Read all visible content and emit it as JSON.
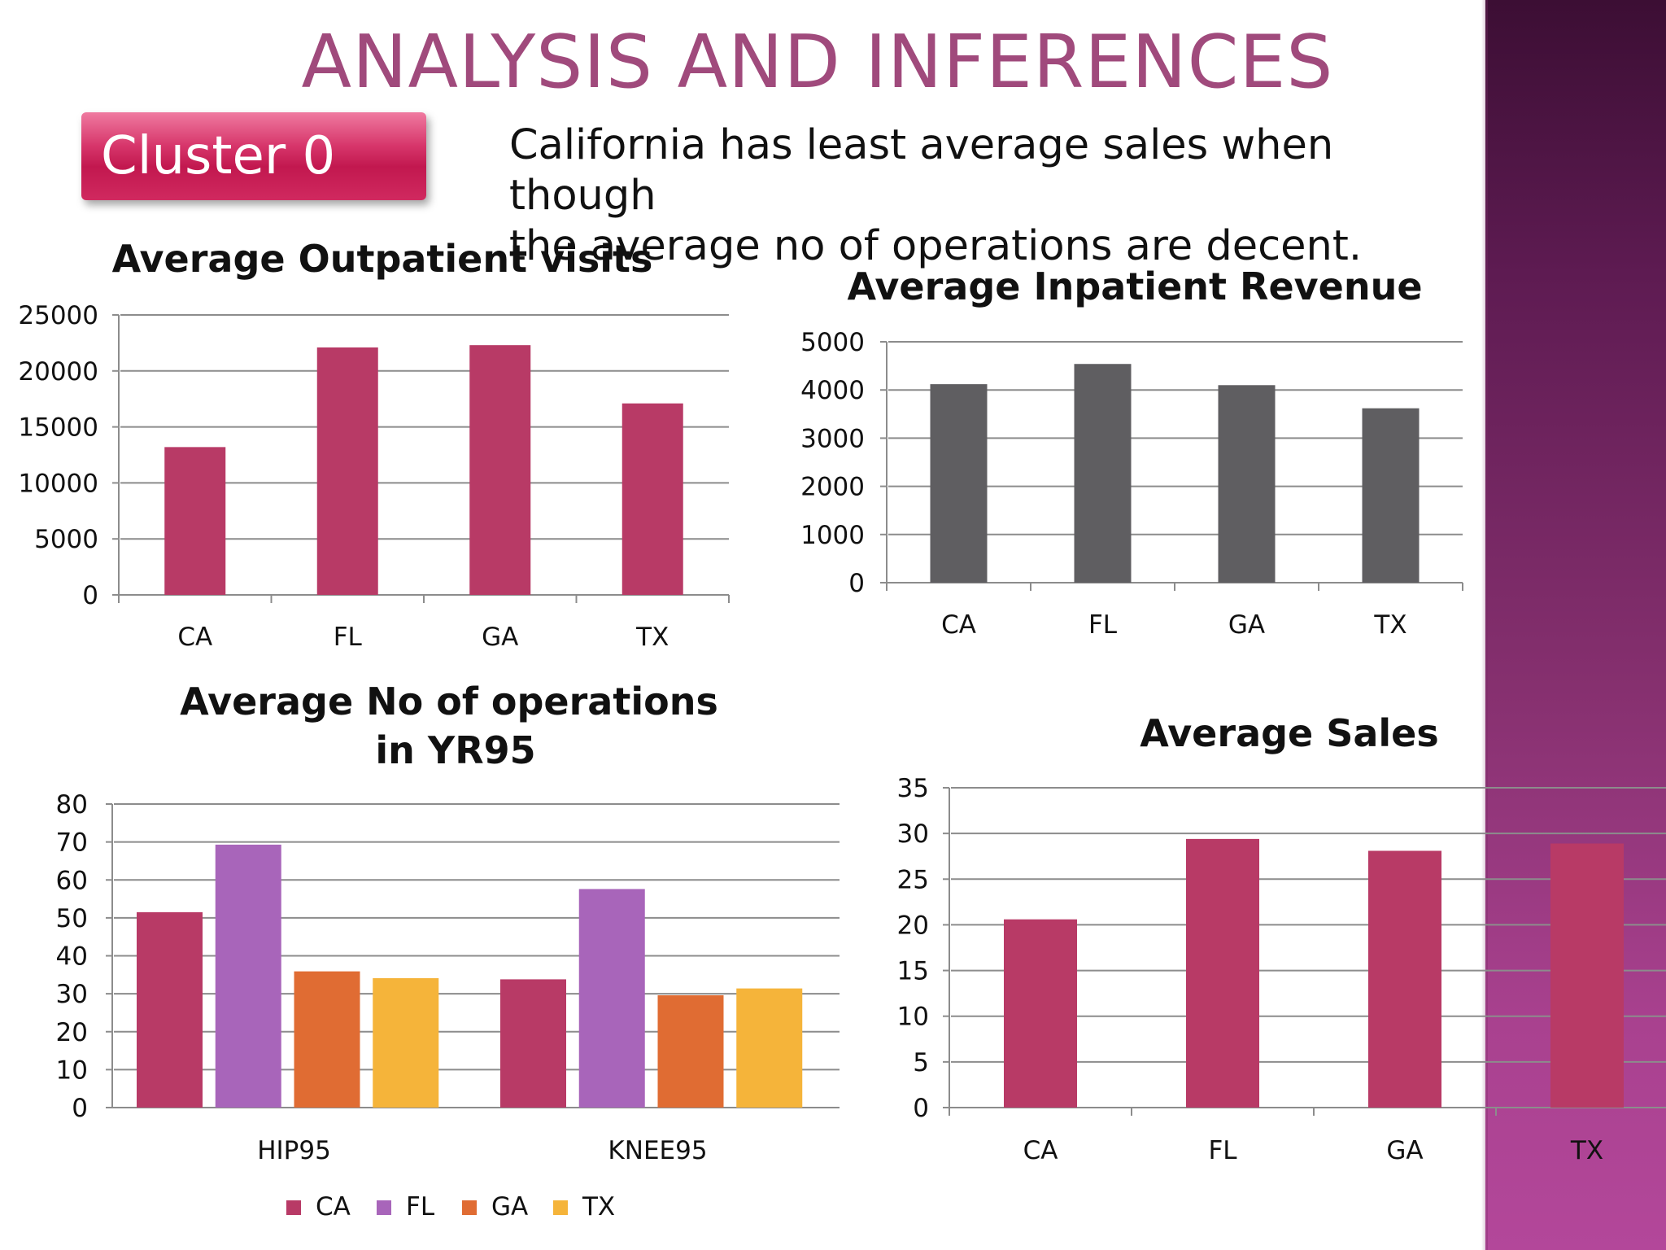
{
  "page": {
    "title": "ANALYSIS AND INFERENCES",
    "cluster_label": "Cluster 0",
    "caption_line1": "California has least average sales when though",
    "caption_line2": "the average no of operations are decent."
  },
  "colors": {
    "title": "#a04a7c",
    "bar_pink": "#b83a66",
    "bar_gray": "#5f5e61",
    "series": [
      "#b83a66",
      "#a865ba",
      "#e06c33",
      "#f5b43a"
    ],
    "side_band": "#86306f"
  },
  "chart_data": [
    {
      "type": "bar",
      "title": "Average Outpatient visits",
      "categories": [
        "CA",
        "FL",
        "GA",
        "TX"
      ],
      "values": [
        13200,
        22100,
        22300,
        17100
      ],
      "ylim": [
        0,
        25000
      ],
      "yticks": [
        0,
        5000,
        10000,
        15000,
        20000,
        25000
      ],
      "grid": true,
      "legend": "none"
    },
    {
      "type": "bar",
      "title": "Average Inpatient Revenue",
      "categories": [
        "CA",
        "FL",
        "GA",
        "TX"
      ],
      "values": [
        4120,
        4540,
        4100,
        3620
      ],
      "ylim": [
        0,
        5000
      ],
      "yticks": [
        0,
        1000,
        2000,
        3000,
        4000,
        5000
      ],
      "grid": true,
      "legend": "none"
    },
    {
      "type": "bar",
      "title_line1": "Average No of operations",
      "title_line2": "in YR95",
      "categories": [
        "HIP95",
        "KNEE95"
      ],
      "series": [
        {
          "name": "CA",
          "values": [
            51.5,
            33.8
          ]
        },
        {
          "name": "FL",
          "values": [
            69.3,
            57.6
          ]
        },
        {
          "name": "GA",
          "values": [
            35.9,
            29.6
          ]
        },
        {
          "name": "TX",
          "values": [
            34.1,
            31.4
          ]
        }
      ],
      "ylim": [
        0,
        80
      ],
      "yticks": [
        0,
        10,
        20,
        30,
        40,
        50,
        60,
        70,
        80
      ],
      "grid": true,
      "legend": "bottom"
    },
    {
      "type": "bar",
      "title": "Average Sales",
      "categories": [
        "CA",
        "FL",
        "GA",
        "TX"
      ],
      "values": [
        20.6,
        29.4,
        28.1,
        28.9
      ],
      "ylim": [
        0,
        35
      ],
      "yticks": [
        0,
        5,
        10,
        15,
        20,
        25,
        30,
        35
      ],
      "grid": true,
      "legend": "none"
    }
  ]
}
